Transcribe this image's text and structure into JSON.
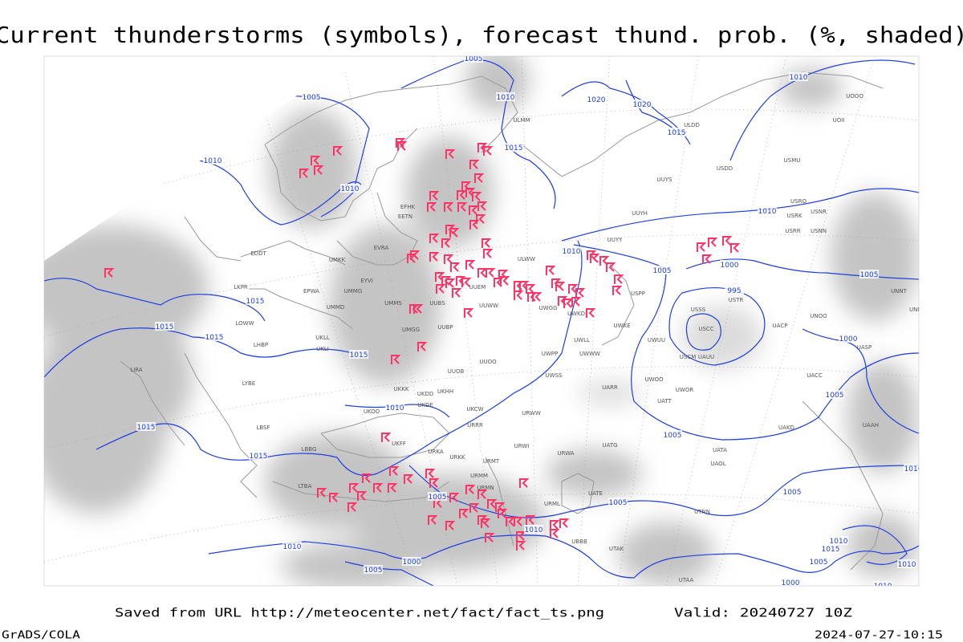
{
  "header": {
    "title": "Current thunderstorms (symbols), forecast thund. prob. (%, shaded)"
  },
  "footer": {
    "source": "Saved from URL http://meteocenter.net/fact/fact_ts.png",
    "valid": "Valid: 20240727 10Z",
    "credit": "GrADS/COLA",
    "timestamp": "2024-07-27-10:15"
  },
  "isobar_labels": [
    "1005",
    "1005",
    "1010",
    "1020",
    "1020",
    "1010",
    "1015",
    "1015",
    "1010",
    "1010",
    "1010",
    "1010",
    "1005",
    "1000",
    "1005",
    "995",
    "1015",
    "1015",
    "1015",
    "1015",
    "1000",
    "1010",
    "1005",
    "1005",
    "1015",
    "1015",
    "1005",
    "1005",
    "1005",
    "1010",
    "1010",
    "1010",
    "1005",
    "1000",
    "1000",
    "1005",
    "1010",
    "1010",
    "1015",
    "1010"
  ],
  "stations": [
    "EDDT",
    "EPWA",
    "LKPR",
    "LOWW",
    "LHBP",
    "LYBE",
    "LBSF",
    "LBBG",
    "LTBA",
    "LIRA",
    "UKLL",
    "UKLI",
    "UMMG",
    "UMMS",
    "UMMD",
    "EYVI",
    "UMKK",
    "EVRA",
    "EETN",
    "EFHK",
    "ULWW",
    "UUEM",
    "UUWW",
    "UUBP",
    "UMGG",
    "UUOB",
    "UUOO",
    "UKHH",
    "UKKK",
    "UKDD",
    "UKOO",
    "UKDE",
    "UKCW",
    "URRR",
    "UKFF",
    "URKA",
    "URKK",
    "URMT",
    "URMM",
    "URMN",
    "URWI",
    "URWA",
    "UATG",
    "UATE",
    "URML",
    "UBBB",
    "UTAK",
    "UTAA",
    "UTNN",
    "UAOL",
    "UATA",
    "UACC",
    "UAAH",
    "UAKD",
    "UAUU",
    "UACP",
    "UASP",
    "UNOO",
    "UNNT",
    "UNBB",
    "USSS",
    "USTR",
    "USCC",
    "USCM",
    "USRR",
    "USNN",
    "USRK",
    "USRO",
    "USNR",
    "UUYS",
    "UUYH",
    "UUYY",
    "UWPP",
    "UWSS",
    "UWWW",
    "UWKE",
    "UWKD",
    "UWGG",
    "UWLL",
    "UWUU",
    "UWOO",
    "UWOR",
    "UARR",
    "UATT",
    "URWW",
    "ULDD",
    "USDD",
    "USMU",
    "UOOO",
    "UOII",
    "ULMM",
    "UUBS",
    "USPP"
  ]
}
